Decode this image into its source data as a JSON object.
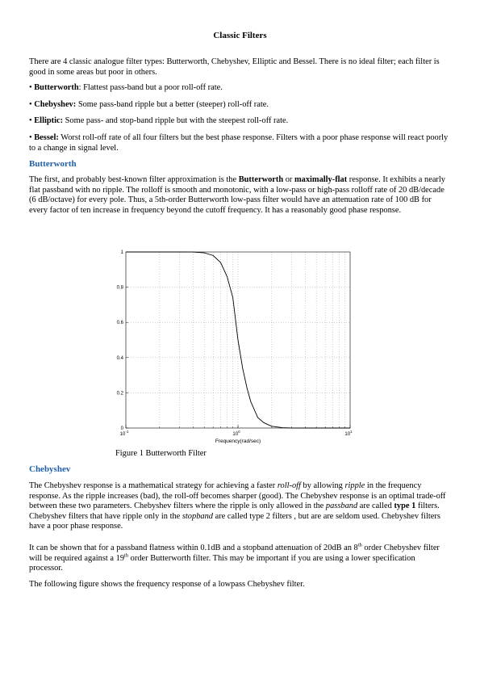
{
  "title": "Classic Filters",
  "intro": {
    "text": "There are 4 classic analogue filter types: Butterworth, Chebyshev, Elliptic and Bessel. There is no ideal filter; each filter is good in some areas but poor in others."
  },
  "bullets": [
    {
      "marker": "• ",
      "term": "Butterworth",
      "sep": ": ",
      "text": "Flattest pass-band but a poor roll-off rate."
    },
    {
      "marker": "• ",
      "term": "Chebyshev:",
      "sep": " ",
      "text": "Some pass-band ripple but a better (steeper) roll-off rate."
    },
    {
      "marker": "• ",
      "term": "Elliptic:",
      "sep": " ",
      "text": "Some pass- and stop-band ripple but with the steepest roll-off rate."
    },
    {
      "marker": "• ",
      "term": "Bessel:",
      "sep": " ",
      "text": "Worst roll-off rate of all four filters but the best phase response. Filters with a poor phase response will react poorly to a change in signal level."
    }
  ],
  "butterworth": {
    "heading": "Butterworth",
    "p1": "The first, and probably best-known filter approximation is the ",
    "b1": "Butterworth",
    "p2": " or ",
    "b2": "maximally-flat",
    "p3": " response. It exhibits a nearly flat passband with no ripple. The rolloff is smooth and monotonic, with a low-pass or high-pass rolloff rate of 20 dB/decade (6 dB/octave) for every pole. Thus, a 5th-order Butterworth low-pass filter would have an attenuation rate of 100 dB for every factor of ten increase in frequency beyond the cutoff frequency. It has a reasonably good phase response."
  },
  "figure": {
    "caption": "Figure 1 Butterworth Filter",
    "chart_data": {
      "type": "line",
      "title": "",
      "xlabel": "Frequency(rad/sec)",
      "ylabel": "",
      "xscale": "log",
      "xlim": [
        0.1,
        10
      ],
      "ylim": [
        0,
        1
      ],
      "x_ticks": [
        {
          "base": "10",
          "exp": "-1"
        },
        {
          "base": "10",
          "exp": "0"
        },
        {
          "base": "10",
          "exp": "1"
        }
      ],
      "y_ticks": [
        "0",
        "0.2",
        "0.4",
        "0.6",
        "0.8",
        "1"
      ],
      "y_tick_values": [
        0,
        0.2,
        0.4,
        0.6,
        0.8,
        1
      ],
      "grid": "dotted",
      "series": [
        {
          "name": "",
          "x": [
            0.1,
            0.2,
            0.3,
            0.4,
            0.5,
            0.6,
            0.7,
            0.8,
            0.9,
            1.0,
            1.1,
            1.2,
            1.3,
            1.5,
            1.7,
            2.0,
            2.5,
            3.0,
            4.0,
            5.0,
            10.0
          ],
          "y": [
            1.0,
            1.0,
            1.0,
            0.9995,
            0.995,
            0.98,
            0.94,
            0.86,
            0.74,
            0.5,
            0.34,
            0.23,
            0.15,
            0.06,
            0.03,
            0.01,
            0.002,
            0.0005,
            0.0,
            0.0,
            0.0
          ]
        }
      ]
    }
  },
  "chebyshev": {
    "heading": "Chebyshev",
    "p1a": "The Chebyshev response is a mathematical strategy for achieving a faster ",
    "i1": "roll-off",
    "p1b": " by allowing ",
    "i2": "ripple",
    "p1c": " in the frequency response. As the ripple increases (bad), the roll-off becomes sharper (good). The Chebyshev response is an optimal trade-off between these two parameters.  Chebyshev filters where  the ripple is only allowed in the ",
    "i3": "passband",
    "p1d": " are called ",
    "b1": "type 1",
    "p1e": " filters. Chebyshev filters that have ripple only in the ",
    "i4": "stopband",
    "p1f": " are called type 2 filters , but are are seldom used. Chebyshev filters have a poor phase response.",
    "p2a": "It can be shown that for a passband flatness within 0.1dB and a stopband attenuation of 20dB an 8",
    "sup1": "th",
    "p2b": " order Chebyshev filter will be required against a 19",
    "sup2": "th",
    "p2c": " order Butterworth filter. This may be important if you are using a lower specification processor.",
    "p3": "The following figure shows the frequency response of a lowpass Chebyshev filter."
  }
}
